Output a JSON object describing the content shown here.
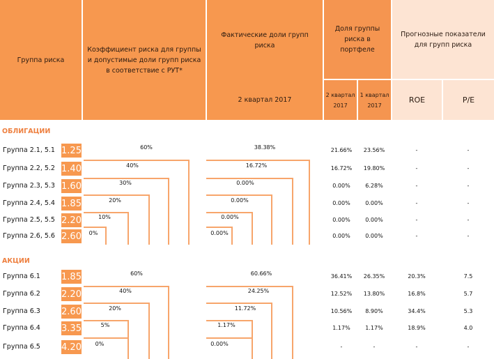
{
  "header": {
    "group": "Группа риска",
    "coef": "Коэффициент риска для группы и допустимые доли групп риска в соответствие с РУТ*",
    "actual": "Фактические доли групп риска",
    "actual_period": "2 квартал 2017",
    "portfolio": "Доля группы риска в портфеле",
    "q2": "2 квартал 2017",
    "q1": "1 квартал 2017",
    "forecast": "Прогнозные показатели для групп риска",
    "roe": "ROE",
    "pe": "P/E"
  },
  "sections": [
    {
      "title": "ОБЛИГАЦИИ",
      "rows": [
        {
          "name": "Группа 2.1, 5.1",
          "coef": "1.25",
          "allowed": "60%",
          "actual": "38.38%",
          "q2": "21.66%",
          "q1": "23.56%",
          "roe": "-",
          "pe": "-"
        },
        {
          "name": "Группа 2.2, 5.2",
          "coef": "1.40",
          "allowed": "40%",
          "actual": "16.72%",
          "q2": "16.72%",
          "q1": "19.80%",
          "roe": "-",
          "pe": "-"
        },
        {
          "name": "Группа 2.3, 5.3",
          "coef": "1.60",
          "allowed": "30%",
          "actual": "0.00%",
          "q2": "0.00%",
          "q1": "6.28%",
          "roe": "-",
          "pe": "-"
        },
        {
          "name": "Группа 2.4, 5.4",
          "coef": "1.85",
          "allowed": "20%",
          "actual": "0.00%",
          "q2": "0.00%",
          "q1": "0.00%",
          "roe": "-",
          "pe": "-"
        },
        {
          "name": "Группа 2.5, 5.5",
          "coef": "2.20",
          "allowed": "10%",
          "actual": "0.00%",
          "q2": "0.00%",
          "q1": "0.00%",
          "roe": "-",
          "pe": "-"
        },
        {
          "name": "Группа 2.6, 5.6",
          "coef": "2.60",
          "allowed": "0%",
          "actual": "0.00%",
          "q2": "0.00%",
          "q1": "0.00%",
          "roe": "-",
          "pe": "-"
        }
      ]
    },
    {
      "title": "АКЦИИ",
      "rows": [
        {
          "name": "Группа 6.1",
          "coef": "1.85",
          "allowed": "60%",
          "actual": "60.66%",
          "q2": "36.41%",
          "q1": "26.35%",
          "roe": "20.3%",
          "pe": "7.5"
        },
        {
          "name": "Группа 6.2",
          "coef": "2.20",
          "allowed": "40%",
          "actual": "24.25%",
          "q2": "12.52%",
          "q1": "13.80%",
          "roe": "16.8%",
          "pe": "5.7"
        },
        {
          "name": "Группа 6.3",
          "coef": "2.60",
          "allowed": "20%",
          "actual": "11.72%",
          "q2": "10.56%",
          "q1": "8.90%",
          "roe": "34.4%",
          "pe": "5.3"
        },
        {
          "name": "Группа 6.4",
          "coef": "3.35",
          "allowed": "5%",
          "actual": "1.17%",
          "q2": "1.17%",
          "q1": "1.17%",
          "roe": "18.9%",
          "pe": "4.0"
        },
        {
          "name": "Группа 6.5",
          "coef": "4.20",
          "allowed": "0%",
          "actual": "0.00%",
          "q2": "-",
          "q1": "-",
          "roe": "-",
          "pe": "-"
        }
      ]
    }
  ]
}
